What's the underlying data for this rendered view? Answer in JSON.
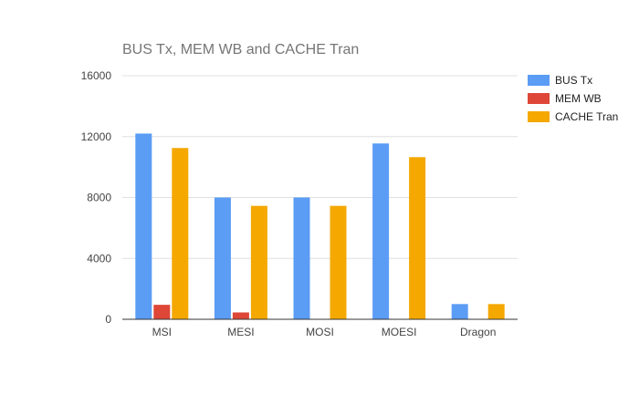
{
  "chart_data": {
    "type": "bar",
    "title": "BUS Tx, MEM WB and CACHE Tran",
    "categories": [
      "MSI",
      "MESI",
      "MOSI",
      "MOESI",
      "Dragon"
    ],
    "series": [
      {
        "name": "BUS Tx",
        "color": "#5b9cf5",
        "values": [
          12200,
          8000,
          8000,
          11550,
          1000
        ]
      },
      {
        "name": "MEM WB",
        "color": "#de4637",
        "values": [
          950,
          450,
          0,
          0,
          0
        ]
      },
      {
        "name": "CACHE Tran",
        "color": "#f4a800",
        "values": [
          11250,
          7450,
          7450,
          10650,
          1000
        ]
      }
    ],
    "ylim": [
      0,
      16000
    ],
    "yticks": [
      0,
      4000,
      8000,
      12000,
      16000
    ],
    "xlabel": "",
    "ylabel": "",
    "grid": true,
    "legend_position": "right"
  }
}
